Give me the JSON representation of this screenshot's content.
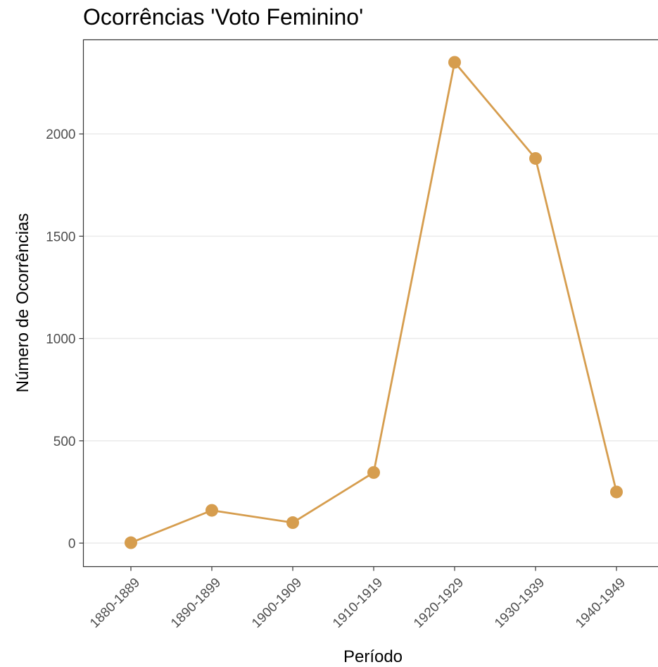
{
  "chart_data": {
    "type": "line",
    "title": "Ocorrências 'Voto Feminino'",
    "xlabel": "Período",
    "ylabel": "Número de Ocorrências",
    "categories": [
      "1880-1889",
      "1890-1899",
      "1900-1909",
      "1910-1919",
      "1920-1929",
      "1930-1939",
      "1940-1949"
    ],
    "series": [
      {
        "values": [
          2,
          160,
          100,
          345,
          2350,
          1880,
          250
        ]
      }
    ],
    "ylim": [
      -115,
      2460
    ],
    "yticks": [
      0,
      500,
      1000,
      1500,
      2000
    ],
    "grid": "horizontal-major",
    "legend": "none",
    "color": "#D69D4E"
  }
}
